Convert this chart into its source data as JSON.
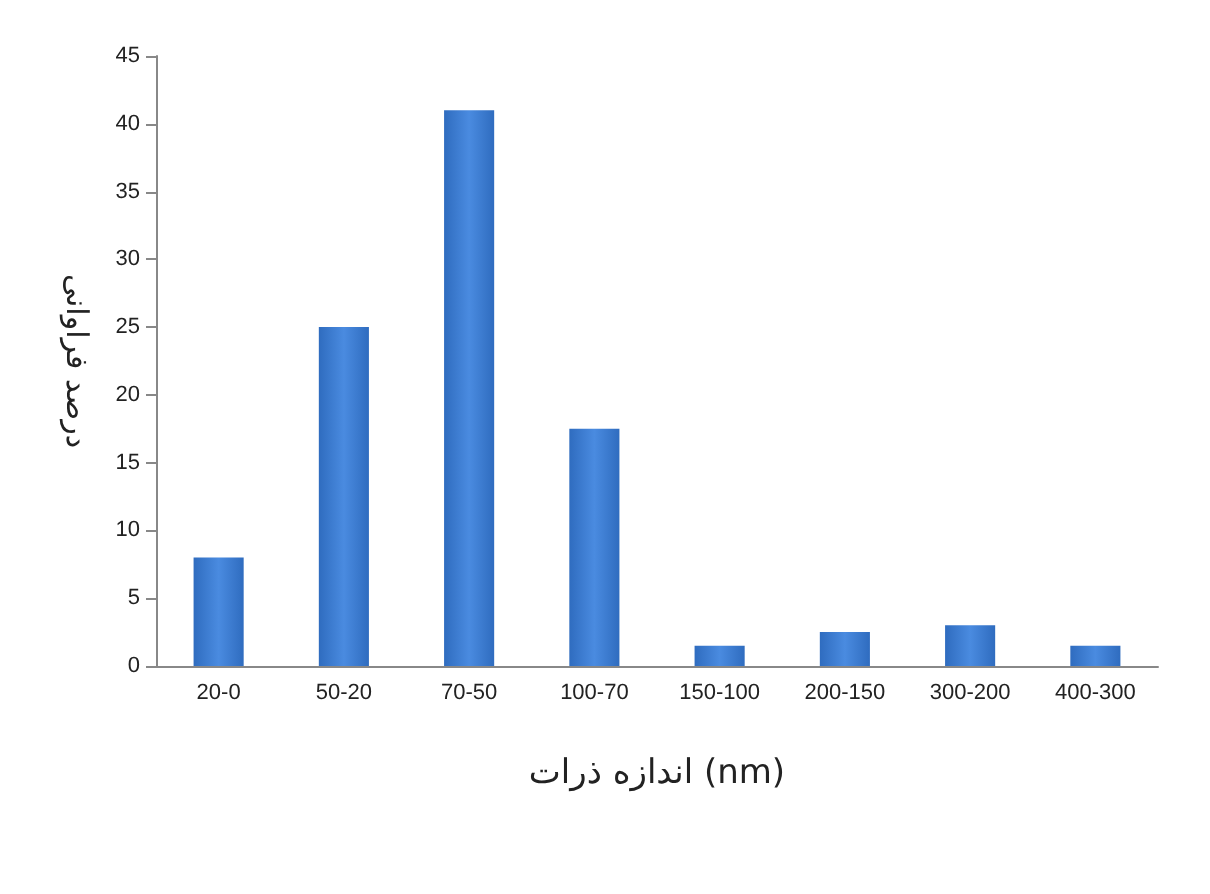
{
  "chart_data": {
    "type": "bar",
    "xlabel": "اندازه ذرات (nm)",
    "ylabel": "درصد فراوانی",
    "categories": [
      "20-0",
      "50-20",
      "70-50",
      "100-70",
      "150-100",
      "200-150",
      "300-200",
      "400-300"
    ],
    "values": [
      8,
      25,
      41,
      17.5,
      1.5,
      2.5,
      3,
      1.5
    ],
    "color": "#2f6cbf",
    "ylim": [
      0,
      45
    ],
    "yticks": [
      0,
      5,
      10,
      15,
      20,
      25,
      30,
      35,
      40,
      45
    ],
    "grid": false
  }
}
